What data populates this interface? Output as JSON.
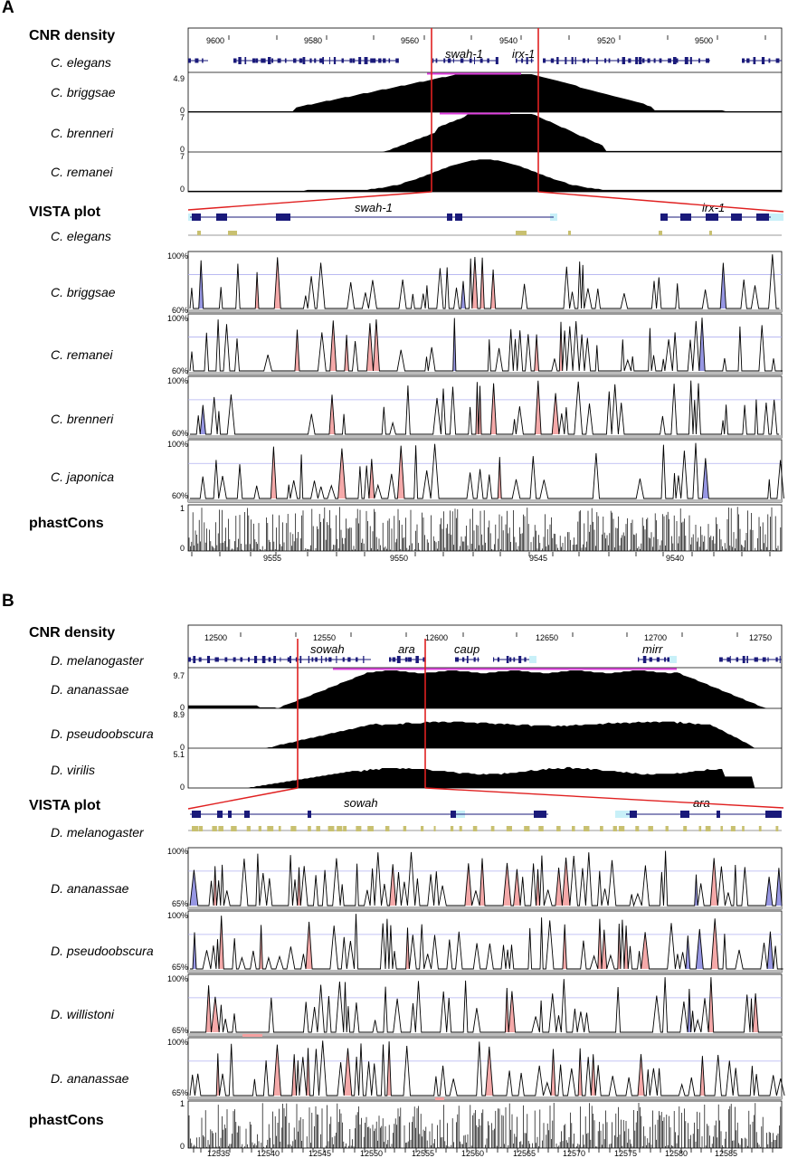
{
  "panels": [
    {
      "letter": "A",
      "cnr_label": "CNR density",
      "vista_label": "VISTA plot",
      "phast_label": "phastCons",
      "ref_species": "C. elegans",
      "density_tracks": [
        {
          "species": "C. briggsae",
          "ymax": "4.9",
          "ymin": "0"
        },
        {
          "species": "C. brenneri",
          "ymax": "7",
          "ymin": "0"
        },
        {
          "species": "C. remanei",
          "ymax": "7",
          "ymin": "0"
        }
      ],
      "top_axis_ticks": [
        "9600",
        "9580",
        "9560",
        "9540",
        "9520",
        "9500"
      ],
      "top_genes": [
        "swah-1",
        "irx-1"
      ],
      "vista_ref_species": "C. elegans",
      "vista_genes": [
        "swah-1",
        "irx-1"
      ],
      "vista_tracks": [
        {
          "species": "C. briggsae",
          "top": "100%",
          "bottom": "60%"
        },
        {
          "species": "C. remanei",
          "top": "100%",
          "bottom": "60%"
        },
        {
          "species": "C. brenneri",
          "top": "100%",
          "bottom": "60%"
        },
        {
          "species": "C. japonica",
          "top": "100%",
          "bottom": "60%"
        }
      ],
      "phast_ymax": "1",
      "phast_ymin": "0",
      "bottom_axis_ticks": [
        "9555",
        "9550",
        "9545",
        "9540"
      ]
    },
    {
      "letter": "B",
      "cnr_label": "CNR density",
      "vista_label": "VISTA plot",
      "phast_label": "phastCons",
      "ref_species": "D. melanogaster",
      "density_tracks": [
        {
          "species": "D. ananassae",
          "ymax": "9.7",
          "ymin": "0"
        },
        {
          "species": "D. pseudoobscura",
          "ymax": "8.9",
          "ymin": "0"
        },
        {
          "species": "D. virilis",
          "ymax": "5.1",
          "ymin": "0"
        }
      ],
      "top_axis_ticks": [
        "12500",
        "12550",
        "12600",
        "12650",
        "12700",
        "12750"
      ],
      "top_genes": [
        "sowah",
        "ara",
        "caup",
        "mirr"
      ],
      "vista_ref_species": "D. melanogaster",
      "vista_genes": [
        "sowah",
        "ara"
      ],
      "vista_tracks": [
        {
          "species": "D. ananassae",
          "top": "100%",
          "bottom": "65%"
        },
        {
          "species": "D. pseudoobscura",
          "top": "100%",
          "bottom": "65%"
        },
        {
          "species": "D. willistoni",
          "top": "100%",
          "bottom": "65%"
        },
        {
          "species": "D. ananassae",
          "top": "100%",
          "bottom": "65%"
        }
      ],
      "phast_ymax": "1",
      "phast_ymin": "0",
      "bottom_axis_ticks": [
        "12535",
        "12540",
        "12545",
        "12550",
        "12555",
        "12560",
        "12565",
        "12570",
        "12575",
        "12580",
        "12585"
      ]
    }
  ],
  "colors": {
    "gene_blue": "#1a1a7a",
    "utr_cyan": "#c8f0f8",
    "zoom_red": "#e02020",
    "cnr_magenta": "#e040e0",
    "cns_pink": "#f4a0a0",
    "exon_blue": "#8c8ce0",
    "midline": "#b0b0f0",
    "cons_olive": "#c8c070"
  }
}
